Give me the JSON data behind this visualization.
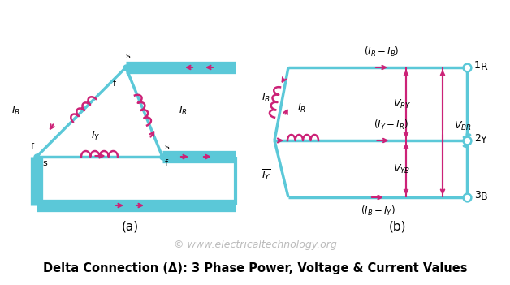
{
  "bg_color": "#ffffff",
  "cyan": "#5BC8D8",
  "magenta": "#CC2277",
  "title": "Delta Connection (Δ): 3 Phase Power, Voltage & Current Values",
  "title_fontsize": 10.5,
  "watermark": "© www.electricaltechnology.org",
  "watermark_color": "#bbbbbb",
  "label_a": "(a)",
  "label_b": "(b)",
  "figsize": [
    6.28,
    3.51
  ],
  "dpi": 100
}
